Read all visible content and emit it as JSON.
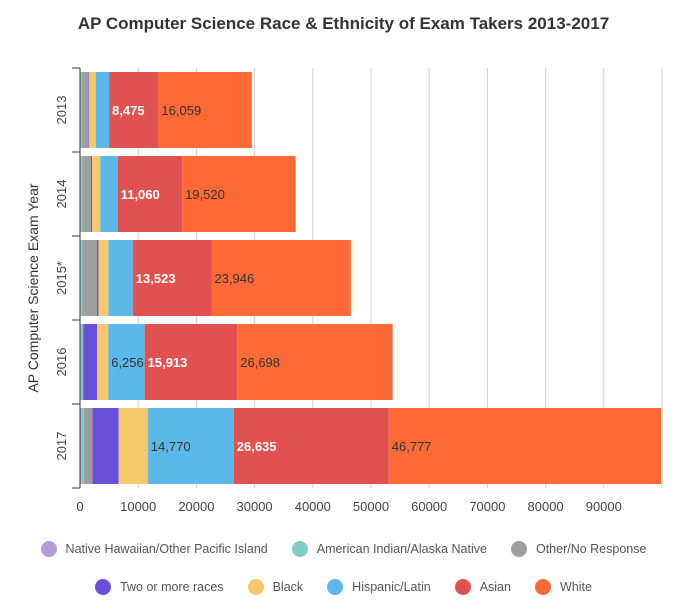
{
  "chart_data": {
    "type": "bar",
    "orientation": "horizontal",
    "stacked": true,
    "title": "AP Computer Science Race & Ethnicity of Exam Takers 2013-2017",
    "xlabel": "",
    "ylabel": "AP Computer Science Exam Year",
    "categories": [
      "2013",
      "2014",
      "2015*",
      "2016",
      "2017"
    ],
    "xlim": [
      0,
      100000
    ],
    "xticks": [
      0,
      10000,
      20000,
      30000,
      40000,
      50000,
      60000,
      70000,
      80000,
      90000
    ],
    "xtick_labels": [
      "0",
      "10000",
      "20000",
      "30000",
      "40000",
      "50000",
      "60000",
      "70000",
      "80000",
      "90000"
    ],
    "grid": true,
    "series": [
      {
        "name": "Native Hawaiian/Other Pacific Island",
        "color": "#b39ddb",
        "values": [
          100,
          110,
          120,
          150,
          200
        ]
      },
      {
        "name": "American Indian/Alaska Native",
        "color": "#80cbc4",
        "values": [
          250,
          270,
          300,
          400,
          450
        ]
      },
      {
        "name": "Other/No Response",
        "color": "#9e9e9e",
        "values": [
          1000,
          1500,
          2500,
          0,
          1500
        ]
      },
      {
        "name": "Two or more races",
        "color": "#6a4fd8",
        "values": [
          150,
          200,
          250,
          2400,
          4500
        ]
      },
      {
        "name": "Black",
        "color": "#f5c96b",
        "values": [
          1200,
          1400,
          1700,
          1900,
          5000
        ]
      },
      {
        "name": "Hispanic/Latin",
        "color": "#5bb8e8",
        "values": [
          2300,
          3000,
          4200,
          6256,
          14770
        ]
      },
      {
        "name": "Asian",
        "color": "#e0514f",
        "values": [
          8475,
          11060,
          13523,
          15913,
          26635
        ]
      },
      {
        "name": "White",
        "color": "#fe6a35",
        "values": [
          16059,
          19520,
          23946,
          26698,
          46777
        ]
      }
    ],
    "value_labels": [
      {
        "series": "Hispanic/Latin",
        "category": "2016",
        "text": "6,256"
      },
      {
        "series": "Hispanic/Latin",
        "category": "2017",
        "text": "14,770"
      },
      {
        "series": "Asian",
        "category": "2013",
        "text": "8,475"
      },
      {
        "series": "Asian",
        "category": "2014",
        "text": "11,060"
      },
      {
        "series": "Asian",
        "category": "2015*",
        "text": "13,523"
      },
      {
        "series": "Asian",
        "category": "2016",
        "text": "15,913"
      },
      {
        "series": "Asian",
        "category": "2017",
        "text": "26,635"
      },
      {
        "series": "White",
        "category": "2013",
        "text": "16,059"
      },
      {
        "series": "White",
        "category": "2014",
        "text": "19,520"
      },
      {
        "series": "White",
        "category": "2015*",
        "text": "23,946"
      },
      {
        "series": "White",
        "category": "2016",
        "text": "26,698"
      },
      {
        "series": "White",
        "category": "2017",
        "text": "46,777"
      }
    ],
    "legend": {
      "placement": "bottom",
      "rows": [
        [
          "Native Hawaiian/Other Pacific Island",
          "American Indian/Alaska Native",
          "Other/No Response"
        ],
        [
          "Two or more races",
          "Black",
          "Hispanic/Latin",
          "Asian",
          "White"
        ]
      ]
    }
  }
}
